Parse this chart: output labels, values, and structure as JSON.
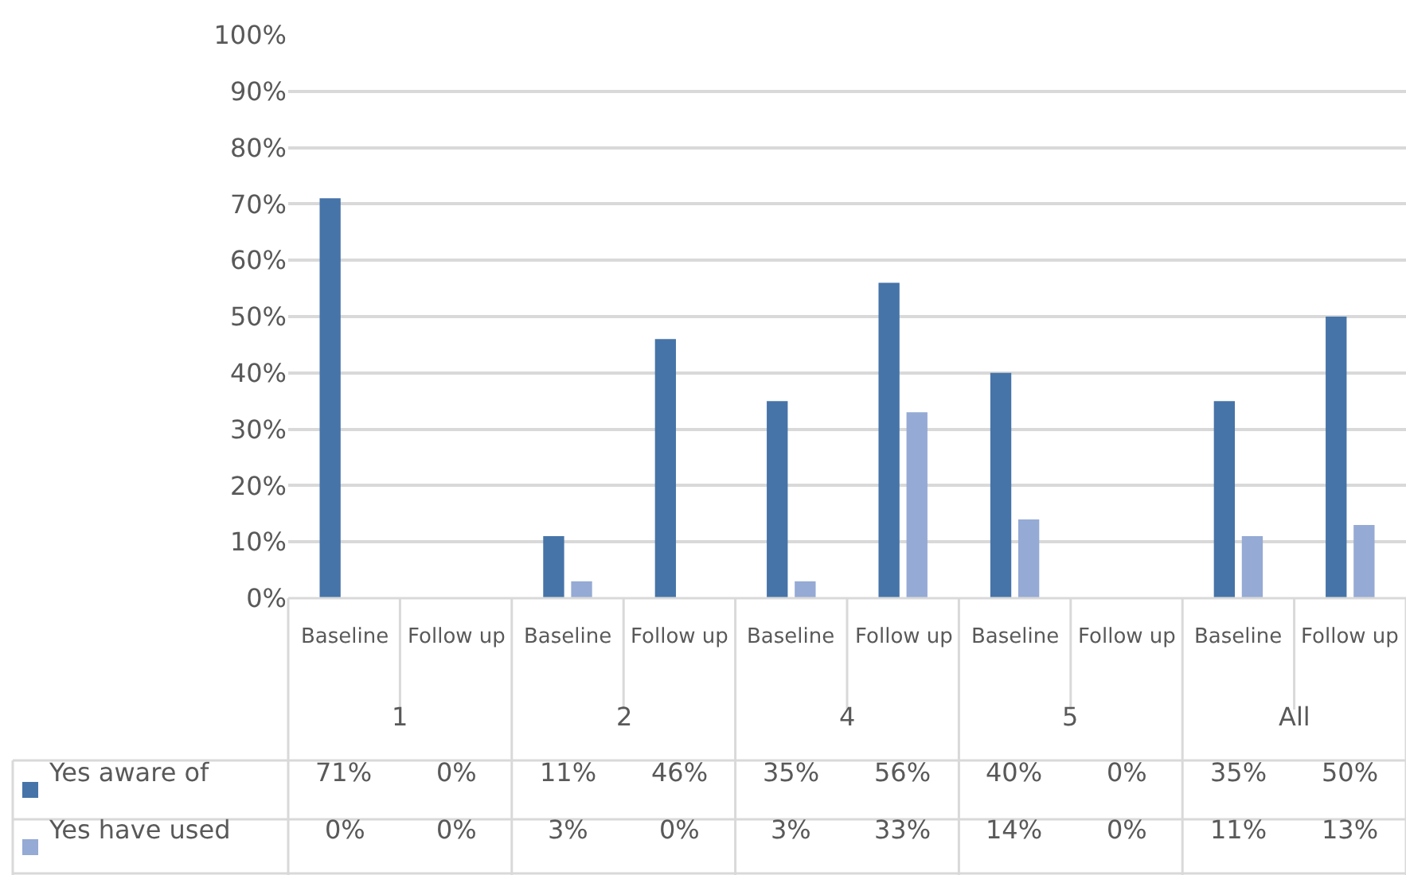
{
  "chart_data": {
    "type": "bar",
    "categories": [
      "Baseline",
      "Follow up",
      "Baseline",
      "Follow up",
      "Baseline",
      "Follow up",
      "Baseline",
      "Follow up",
      "Baseline",
      "Follow up"
    ],
    "annotations": [
      "1",
      "2",
      "4",
      "5",
      "All"
    ],
    "series": [
      {
        "name": "Yes aware of",
        "color": "#4674a8",
        "values": [
          71,
          0,
          11,
          46,
          35,
          56,
          40,
          0,
          35,
          50
        ],
        "value_labels": [
          "71%",
          "0%",
          "11%",
          "46%",
          "35%",
          "56%",
          "40%",
          "0%",
          "35%",
          "50%"
        ]
      },
      {
        "name": "Yes have used",
        "color": "#95aad4",
        "values": [
          0,
          0,
          3,
          0,
          3,
          33,
          14,
          0,
          11,
          13
        ],
        "value_labels": [
          "0%",
          "0%",
          "3%",
          "0%",
          "3%",
          "33%",
          "14%",
          "0%",
          "11%",
          "13%"
        ]
      }
    ],
    "ylim": [
      0,
      100
    ],
    "yticks": [
      {
        "value": 0,
        "label": "0%"
      },
      {
        "value": 10,
        "label": "10%"
      },
      {
        "value": 20,
        "label": "20%"
      },
      {
        "value": 30,
        "label": "30%"
      },
      {
        "value": 40,
        "label": "40%"
      },
      {
        "value": 50,
        "label": "50%"
      },
      {
        "value": 60,
        "label": "60%"
      },
      {
        "value": 70,
        "label": "70%"
      },
      {
        "value": 80,
        "label": "80%"
      },
      {
        "value": 90,
        "label": "90%"
      },
      {
        "value": 100,
        "label": "100%"
      }
    ],
    "grid": "y",
    "legend": "bottom"
  }
}
